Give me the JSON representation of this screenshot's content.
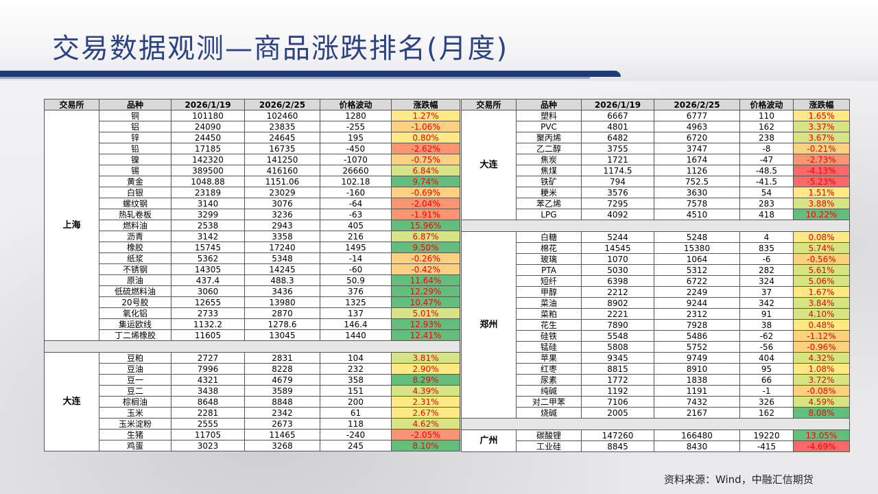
{
  "title": "交易数据观测—商品涨跌排名(月度)",
  "source": "资料来源：Wind，中融汇信期货",
  "headers": [
    "交易所",
    "品种",
    "2026/1/19",
    "2026/2/25",
    "价格波动",
    "涨跌幅"
  ],
  "colors": {
    "strong_up": "#63be7b",
    "up": "#d8e483",
    "flat_up": "#ffe984",
    "flat_down": "#fdd17f",
    "down": "#fa9473",
    "strong_down": "#f8696b",
    "pct_text": "#ff0000"
  },
  "left_groups": [
    {
      "exchange": "上海",
      "rows": [
        [
          "铜",
          "101180",
          "102460",
          "1280",
          "1.27%"
        ],
        [
          "铝",
          "24090",
          "23835",
          "-255",
          "-1.06%"
        ],
        [
          "锌",
          "24450",
          "24645",
          "195",
          "0.80%"
        ],
        [
          "铅",
          "17185",
          "16735",
          "-450",
          "-2.62%"
        ],
        [
          "镍",
          "142320",
          "141250",
          "-1070",
          "-0.75%"
        ],
        [
          "锡",
          "389500",
          "416160",
          "26660",
          "6.84%"
        ],
        [
          "黄金",
          "1048.88",
          "1151.06",
          "102.18",
          "9.74%"
        ],
        [
          "白银",
          "23189",
          "23029",
          "-160",
          "-0.69%"
        ],
        [
          "螺纹钢",
          "3140",
          "3076",
          "-64",
          "-2.04%"
        ],
        [
          "热轧卷板",
          "3299",
          "3236",
          "-63",
          "-1.91%"
        ],
        [
          "燃料油",
          "2538",
          "2943",
          "405",
          "15.96%"
        ],
        [
          "沥青",
          "3142",
          "3358",
          "216",
          "6.87%"
        ],
        [
          "橡胶",
          "15745",
          "17240",
          "1495",
          "9.50%"
        ],
        [
          "纸浆",
          "5362",
          "5348",
          "-14",
          "-0.26%"
        ],
        [
          "不锈钢",
          "14305",
          "14245",
          "-60",
          "-0.42%"
        ],
        [
          "原油",
          "437.4",
          "488.3",
          "50.9",
          "11.64%"
        ],
        [
          "低硫燃料油",
          "3060",
          "3436",
          "376",
          "12.29%"
        ],
        [
          "20号胶",
          "12655",
          "13980",
          "1325",
          "10.47%"
        ],
        [
          "氧化铝",
          "2733",
          "2870",
          "137",
          "5.01%"
        ],
        [
          "集运欧线",
          "1132.2",
          "1278.6",
          "146.4",
          "12.93%"
        ],
        [
          "丁二烯橡胶",
          "11605",
          "13045",
          "1440",
          "12.41%"
        ]
      ]
    },
    {
      "exchange": "大连",
      "rows": [
        [
          "豆粕",
          "2727",
          "2831",
          "104",
          "3.81%"
        ],
        [
          "豆油",
          "7996",
          "8228",
          "232",
          "2.90%"
        ],
        [
          "豆一",
          "4321",
          "4679",
          "358",
          "8.29%"
        ],
        [
          "豆二",
          "3438",
          "3589",
          "151",
          "4.39%"
        ],
        [
          "棕榈油",
          "8648",
          "8848",
          "200",
          "2.31%"
        ],
        [
          "玉米",
          "2281",
          "2342",
          "61",
          "2.67%"
        ],
        [
          "玉米淀粉",
          "2555",
          "2673",
          "118",
          "4.62%"
        ],
        [
          "生猪",
          "11705",
          "11465",
          "-240",
          "-2.05%"
        ],
        [
          "鸡蛋",
          "3023",
          "3268",
          "245",
          "8.10%"
        ]
      ]
    }
  ],
  "right_groups": [
    {
      "exchange": "大连",
      "rows": [
        [
          "塑料",
          "6667",
          "6777",
          "110",
          "1.65%"
        ],
        [
          "PVC",
          "4801",
          "4963",
          "162",
          "3.37%"
        ],
        [
          "聚丙烯",
          "6482",
          "6720",
          "238",
          "3.67%"
        ],
        [
          "乙二醇",
          "3755",
          "3747",
          "-8",
          "-0.21%"
        ],
        [
          "焦炭",
          "1721",
          "1674",
          "-47",
          "-2.73%"
        ],
        [
          "焦煤",
          "1174.5",
          "1126",
          "-48.5",
          "-4.13%"
        ],
        [
          "铁矿",
          "794",
          "752.5",
          "-41.5",
          "-5.23%"
        ],
        [
          "粳米",
          "3576",
          "3630",
          "54",
          "1.51%"
        ],
        [
          "苯乙烯",
          "7295",
          "7578",
          "283",
          "3.88%"
        ],
        [
          "LPG",
          "4092",
          "4510",
          "418",
          "10.22%"
        ]
      ]
    },
    {
      "exchange": "郑州",
      "rows": [
        [
          "白糖",
          "5244",
          "5248",
          "4",
          "0.08%"
        ],
        [
          "棉花",
          "14545",
          "15380",
          "835",
          "5.74%"
        ],
        [
          "玻璃",
          "1070",
          "1064",
          "-6",
          "-0.56%"
        ],
        [
          "PTA",
          "5030",
          "5312",
          "282",
          "5.61%"
        ],
        [
          "短纤",
          "6398",
          "6722",
          "324",
          "5.06%"
        ],
        [
          "甲醇",
          "2212",
          "2249",
          "37",
          "1.67%"
        ],
        [
          "菜油",
          "8902",
          "9244",
          "342",
          "3.84%"
        ],
        [
          "菜粕",
          "2221",
          "2312",
          "91",
          "4.10%"
        ],
        [
          "花生",
          "7890",
          "7928",
          "38",
          "0.48%"
        ],
        [
          "硅铁",
          "5548",
          "5486",
          "-62",
          "-1.12%"
        ],
        [
          "锰硅",
          "5808",
          "5752",
          "-56",
          "-0.96%"
        ],
        [
          "苹果",
          "9345",
          "9749",
          "404",
          "4.32%"
        ],
        [
          "红枣",
          "8815",
          "8910",
          "95",
          "1.08%"
        ],
        [
          "尿素",
          "1772",
          "1838",
          "66",
          "3.72%"
        ],
        [
          "纯碱",
          "1192",
          "1191",
          "-1",
          "-0.08%"
        ],
        [
          "对二甲苯",
          "7106",
          "7432",
          "326",
          "4.59%"
        ],
        [
          "烧碱",
          "2005",
          "2167",
          "162",
          "8.08%"
        ]
      ]
    },
    {
      "exchange": "广州",
      "rows": [
        [
          "碳酸锂",
          "147260",
          "166480",
          "19220",
          "13.05%"
        ],
        [
          "工业硅",
          "8845",
          "8430",
          "-415",
          "-4.69%"
        ]
      ]
    }
  ]
}
